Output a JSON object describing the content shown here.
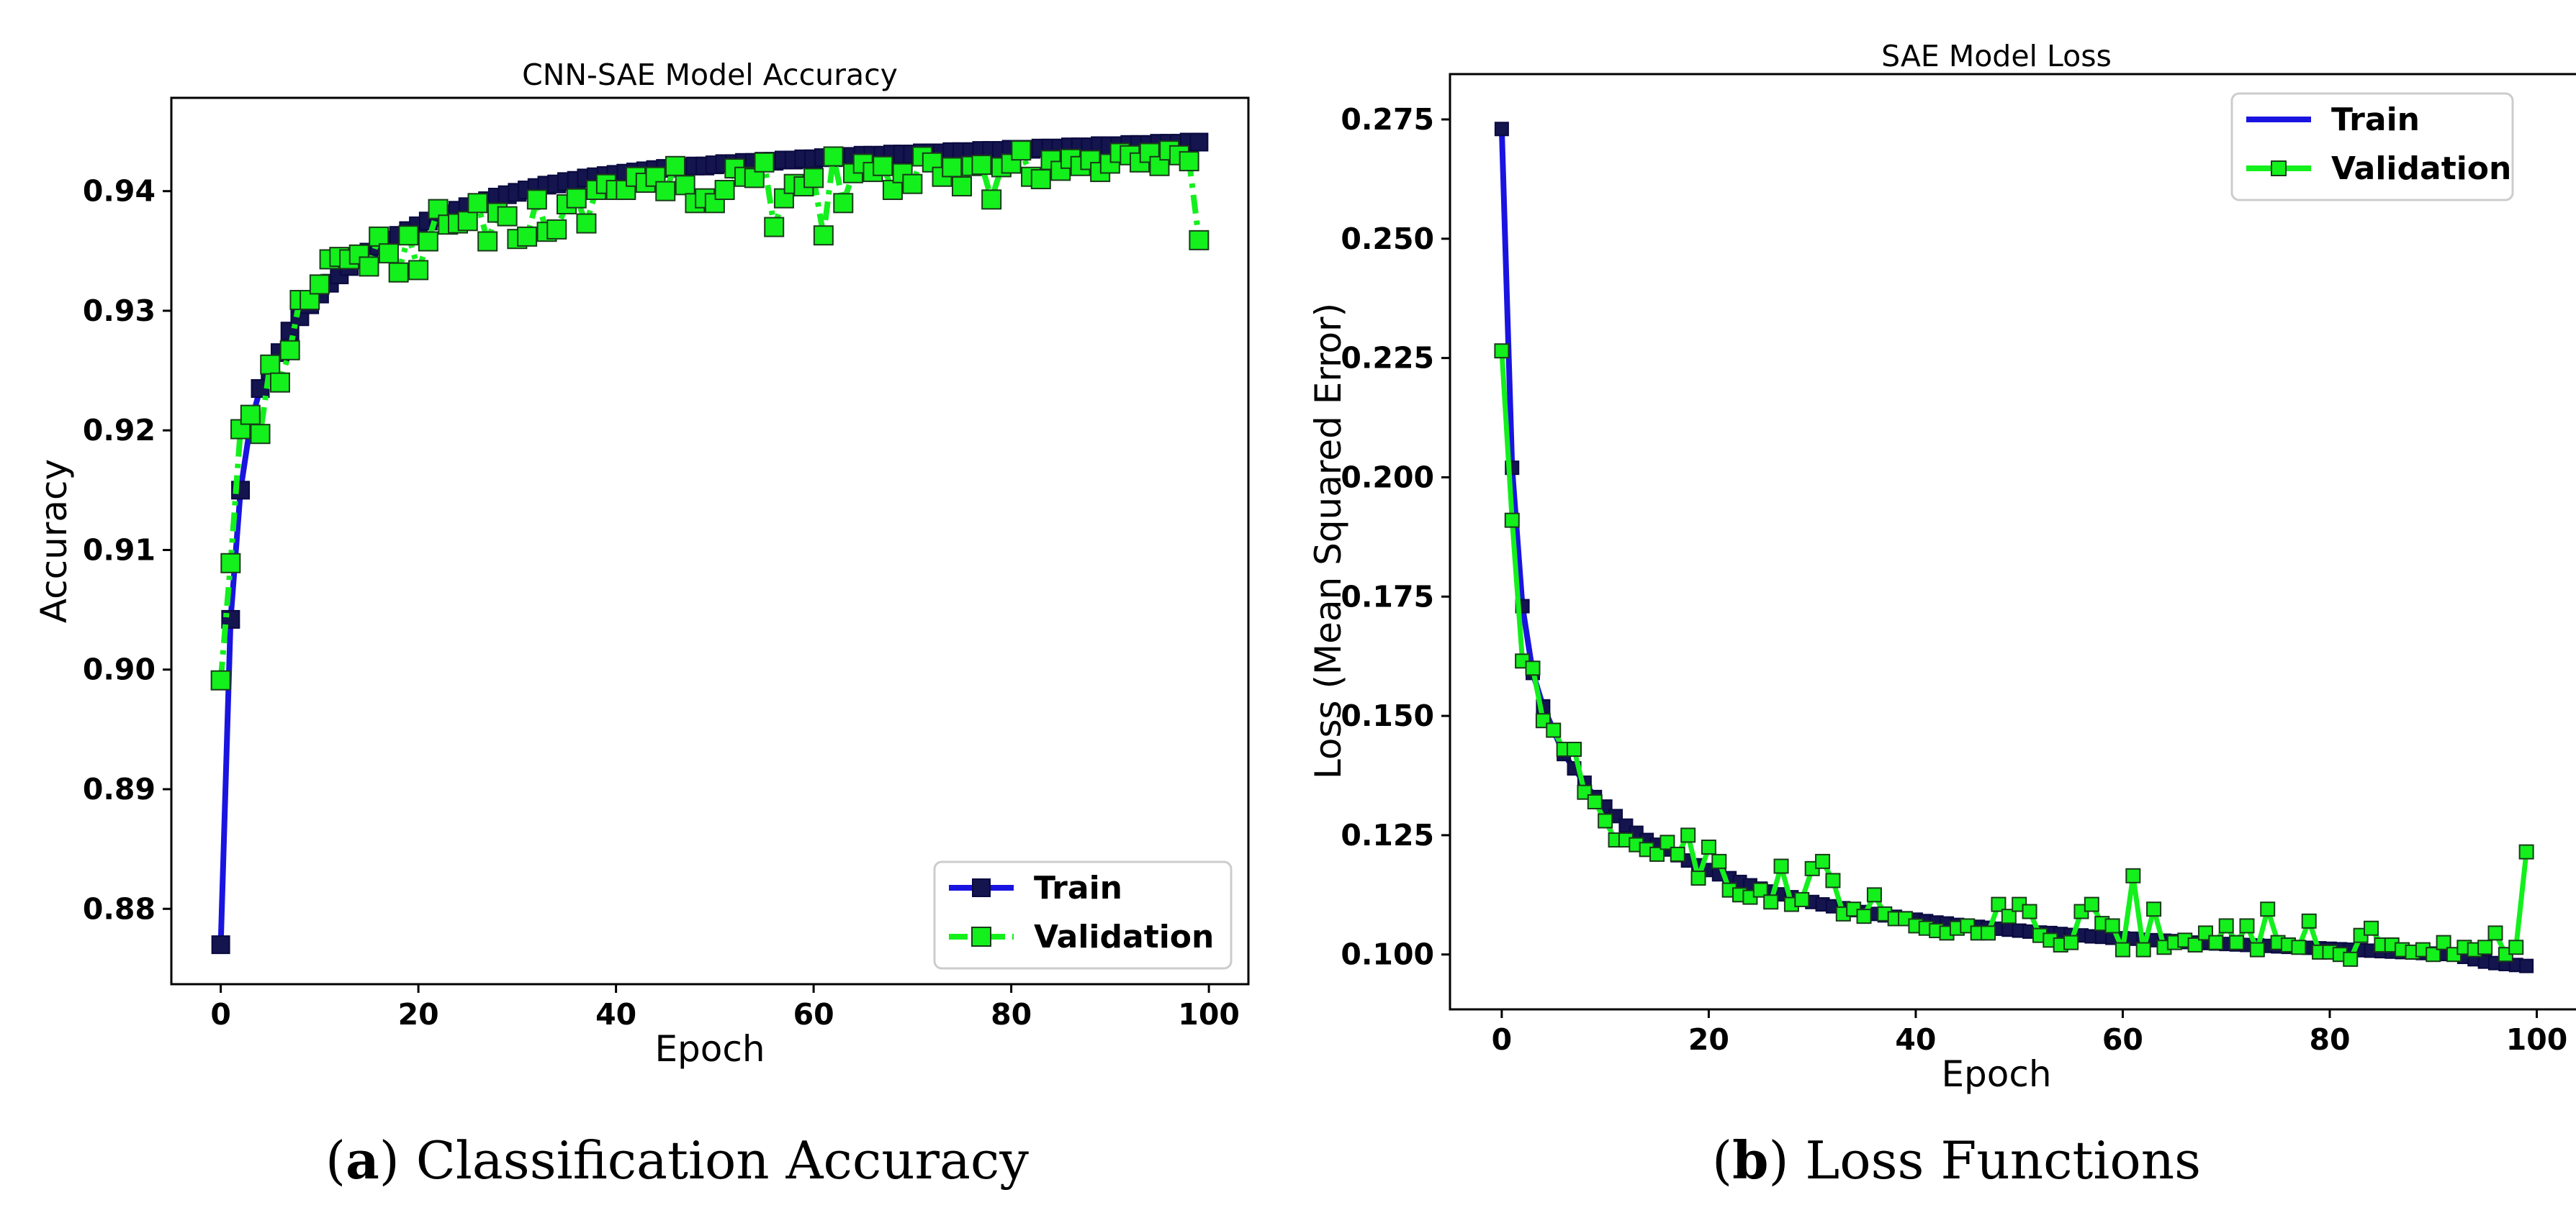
{
  "colors": {
    "train": "#1a14e0",
    "train_marker_edge": "#0a0a40",
    "train_marker": "#14144e",
    "validation": "#13f01c",
    "validation_edge": "#1a3a1a"
  },
  "captions": [
    {
      "letter": "a",
      "text": "Classification Accuracy"
    },
    {
      "letter": "b",
      "text": "Loss Functions"
    }
  ],
  "chart_data": [
    {
      "type": "line",
      "title": "CNN-SAE Model Accuracy",
      "xlabel": "Epoch",
      "ylabel": "Accuracy",
      "xlim": [
        -5,
        104
      ],
      "ylim": [
        0.8737,
        0.9478
      ],
      "xticks": [
        0,
        20,
        40,
        60,
        80,
        100
      ],
      "yticks": [
        0.88,
        0.89,
        0.9,
        0.91,
        0.92,
        0.93,
        0.94
      ],
      "ytick_labels": [
        "0.88",
        "0.89",
        "0.90",
        "0.91",
        "0.92",
        "0.93",
        "0.94"
      ],
      "legend": {
        "position": "lower-right",
        "entries": [
          "Train",
          "Validation"
        ]
      },
      "series": [
        {
          "name": "Train",
          "style": "solid",
          "values": [
            0.877,
            0.9042,
            0.915,
            0.9205,
            0.9235,
            0.925,
            0.9265,
            0.9283,
            0.9295,
            0.9305,
            0.9314,
            0.9323,
            0.933,
            0.9337,
            0.9343,
            0.9349,
            0.9354,
            0.9359,
            0.9363,
            0.9367,
            0.9371,
            0.9375,
            0.9378,
            0.9381,
            0.9384,
            0.9387,
            0.939,
            0.9392,
            0.9395,
            0.9397,
            0.9399,
            0.9401,
            0.9403,
            0.9405,
            0.9406,
            0.9408,
            0.9409,
            0.9411,
            0.9412,
            0.9413,
            0.9414,
            0.9415,
            0.9416,
            0.9417,
            0.9418,
            0.9419,
            0.942,
            0.942,
            0.9421,
            0.9421,
            0.9422,
            0.9423,
            0.9423,
            0.9424,
            0.9424,
            0.9425,
            0.9425,
            0.9426,
            0.9426,
            0.9427,
            0.9427,
            0.9428,
            0.9428,
            0.9429,
            0.9429,
            0.943,
            0.943,
            0.943,
            0.9431,
            0.9431,
            0.9431,
            0.9432,
            0.9432,
            0.9432,
            0.9433,
            0.9433,
            0.9433,
            0.9434,
            0.9434,
            0.9434,
            0.9435,
            0.9435,
            0.9435,
            0.9436,
            0.9436,
            0.9436,
            0.9437,
            0.9437,
            0.9437,
            0.9438,
            0.9438,
            0.9438,
            0.9439,
            0.9439,
            0.9439,
            0.944,
            0.944,
            0.944,
            0.9441,
            0.9441
          ]
        },
        {
          "name": "Validation",
          "style": "dash-dot",
          "values": [
            0.8991,
            0.9089,
            0.9201,
            0.9213,
            0.9197,
            0.9255,
            0.924,
            0.9267,
            0.9309,
            0.9309,
            0.9322,
            0.9343,
            0.9345,
            0.9343,
            0.9347,
            0.9337,
            0.9362,
            0.9348,
            0.9332,
            0.9363,
            0.9334,
            0.9358,
            0.9385,
            0.9372,
            0.9373,
            0.9375,
            0.939,
            0.9358,
            0.9382,
            0.9379,
            0.936,
            0.9362,
            0.9393,
            0.9366,
            0.9368,
            0.9389,
            0.9394,
            0.9373,
            0.9401,
            0.9406,
            0.9401,
            0.9401,
            0.9412,
            0.9407,
            0.9412,
            0.94,
            0.9421,
            0.9405,
            0.939,
            0.9394,
            0.939,
            0.9401,
            0.9419,
            0.9412,
            0.9411,
            0.9424,
            0.937,
            0.9394,
            0.9406,
            0.9404,
            0.9411,
            0.9363,
            0.9429,
            0.939,
            0.9415,
            0.9423,
            0.9416,
            0.9421,
            0.9401,
            0.9415,
            0.9406,
            0.9429,
            0.9424,
            0.9412,
            0.942,
            0.9404,
            0.9421,
            0.9422,
            0.9393,
            0.942,
            0.9423,
            0.9434,
            0.9412,
            0.941,
            0.9426,
            0.9417,
            0.9427,
            0.9421,
            0.9426,
            0.9416,
            0.9423,
            0.9432,
            0.943,
            0.9424,
            0.9432,
            0.9421,
            0.9434,
            0.943,
            0.9425,
            0.9359
          ]
        }
      ]
    },
    {
      "type": "line",
      "title": "SAE Model Loss",
      "xlabel": "Epoch",
      "ylabel": "Loss (Mean Squared Error)",
      "xlim": [
        -5,
        104
      ],
      "ylim": [
        0.0885,
        0.2845
      ],
      "xticks": [
        0,
        20,
        40,
        60,
        80,
        100
      ],
      "yticks": [
        0.1,
        0.125,
        0.15,
        0.175,
        0.2,
        0.225,
        0.25,
        0.275
      ],
      "ytick_labels": [
        "0.100",
        "0.125",
        "0.150",
        "0.175",
        "0.200",
        "0.225",
        "0.250",
        "0.275"
      ],
      "legend": {
        "position": "top-right",
        "entries": [
          "Train",
          "Validation"
        ]
      },
      "series": [
        {
          "name": "Train",
          "style": "solid",
          "values": [
            0.273,
            0.202,
            0.173,
            0.159,
            0.152,
            0.147,
            0.142,
            0.139,
            0.136,
            0.133,
            0.131,
            0.129,
            0.127,
            0.1255,
            0.124,
            0.123,
            0.122,
            0.1208,
            0.1197,
            0.1187,
            0.1177,
            0.1168,
            0.116,
            0.1152,
            0.1145,
            0.1138,
            0.1132,
            0.1126,
            0.112,
            0.1115,
            0.111,
            0.1105,
            0.1101,
            0.1097,
            0.1093,
            0.1089,
            0.1085,
            0.1082,
            0.1079,
            0.1076,
            0.1073,
            0.107,
            0.1067,
            0.1065,
            0.1062,
            0.106,
            0.1058,
            0.1056,
            0.1054,
            0.1052,
            0.105,
            0.1048,
            0.1046,
            0.1045,
            0.1043,
            0.1041,
            0.104,
            0.1038,
            0.1037,
            0.1035,
            0.1034,
            0.1033,
            0.1031,
            0.103,
            0.1029,
            0.1028,
            0.1026,
            0.1025,
            0.1024,
            0.1023,
            0.1022,
            0.1021,
            0.102,
            0.1019,
            0.1018,
            0.1017,
            0.1016,
            0.1015,
            0.1014,
            0.1013,
            0.1012,
            0.1011,
            0.101,
            0.1009,
            0.1008,
            0.1007,
            0.1006,
            0.1005,
            0.1004,
            0.1003,
            0.1002,
            0.1001,
            0.1,
            0.0995,
            0.099,
            0.0985,
            0.0982,
            0.098,
            0.0978,
            0.0976
          ]
        },
        {
          "name": "Validation",
          "style": "solid",
          "values": [
            0.2265,
            0.191,
            0.1615,
            0.16,
            0.149,
            0.147,
            0.143,
            0.143,
            0.134,
            0.132,
            0.128,
            0.124,
            0.124,
            0.123,
            0.122,
            0.121,
            0.1235,
            0.121,
            0.125,
            0.116,
            0.1225,
            0.1195,
            0.1135,
            0.1125,
            0.112,
            0.1135,
            0.111,
            0.1185,
            0.1105,
            0.1115,
            0.118,
            0.1195,
            0.1155,
            0.1085,
            0.1095,
            0.108,
            0.1125,
            0.1085,
            0.1075,
            0.1075,
            0.106,
            0.1055,
            0.105,
            0.1045,
            0.1055,
            0.106,
            0.1045,
            0.1045,
            0.1105,
            0.108,
            0.1105,
            0.109,
            0.104,
            0.103,
            0.102,
            0.1025,
            0.109,
            0.1105,
            0.1065,
            0.106,
            0.101,
            0.1165,
            0.101,
            0.1095,
            0.1015,
            0.1025,
            0.103,
            0.102,
            0.1045,
            0.1025,
            0.106,
            0.1025,
            0.106,
            0.101,
            0.1095,
            0.1025,
            0.102,
            0.1015,
            0.107,
            0.1005,
            0.1005,
            0.1,
            0.099,
            0.104,
            0.1055,
            0.102,
            0.102,
            0.101,
            0.1005,
            0.101,
            0.1,
            0.1025,
            0.1,
            0.1015,
            0.101,
            0.1015,
            0.1045,
            0.1,
            0.1015,
            0.1215
          ]
        }
      ]
    }
  ]
}
